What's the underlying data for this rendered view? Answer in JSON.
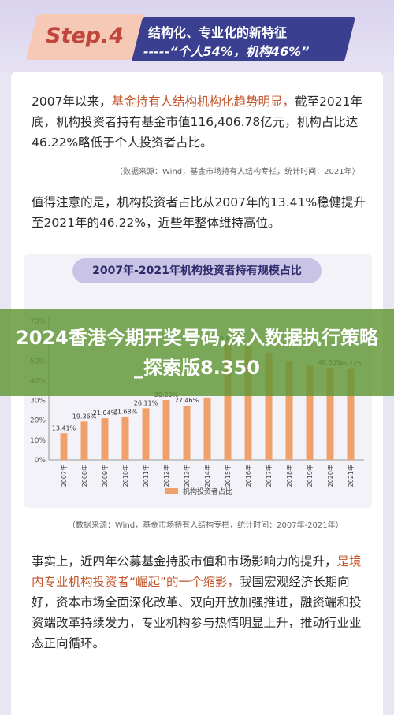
{
  "header": {
    "step": "Step.4",
    "caption_line1": "结构化、专业化的新特征",
    "caption_line2": "-----“个人54%，机构46%”"
  },
  "para1": {
    "pre": "2007年以来，",
    "highlight": "基金持有人结构机构化趋势明显，",
    "post": "截至2021年底，机构投资者持有基金市值116,406.78亿元，机构占比达46.22%略低于个人投资者占比。"
  },
  "source1": "（数据来源：Wind，基金市场持有人结构专栏，统计时间：2021年）",
  "para2": "值得注意的是，机构投资者占比从2007年的13.41%稳健提升至2021年的46.22%，近些年整体维持高位。",
  "chart_data": {
    "type": "bar",
    "title": "2007年-2021年机构投资者持有规模占比",
    "categories": [
      "2007年",
      "2008年",
      "2009年",
      "2010年",
      "2011年",
      "2012年",
      "2013年",
      "2014年",
      "2015年",
      "2016年",
      "2017年",
      "2018年",
      "2019年",
      "2020年",
      "2021年"
    ],
    "series": [
      {
        "name": "机构投资者占比",
        "values": [
          13.41,
          19.36,
          21.04,
          21.68,
          26.11,
          30.2,
          27.46,
          31.5,
          58.51,
          57.5,
          54.0,
          50.0,
          47.5,
          46.6,
          46.22
        ],
        "labels": [
          "13.41%",
          "19.36%",
          "21.04%",
          "21.68%",
          "26.11%",
          "30.20%",
          "27.46%",
          "",
          "58.51%",
          "",
          "",
          "",
          "",
          "46.60%",
          "46.22%"
        ]
      }
    ],
    "yticks": [
      "0%",
      "10%",
      "20%",
      "30%",
      "40%",
      "50%",
      "60%",
      "70%"
    ],
    "ylim": [
      0,
      70
    ],
    "bar_color": "#f0a06a",
    "grid": false,
    "legend_position": "bottom"
  },
  "source2": "（数据来源：Wind，基金市场持有人结构专栏，统计时间：2007年-2021年）",
  "para3": {
    "pre": "事实上，近四年公募基金持股市值和市场影响力的提升，",
    "highlight": "是境内专业机构投资者“崛起”的一个缩影，",
    "post": "我国宏观经济长期向好，资本市场全面深化改革、双向开放加强推进，融资端和投资端改革持续发力，专业机构参与热情明显上升，推动行业业态正向循环。"
  },
  "overlay": {
    "text": "2024香港今期开奖号码,深入数据执行策略_探索版8.350"
  }
}
